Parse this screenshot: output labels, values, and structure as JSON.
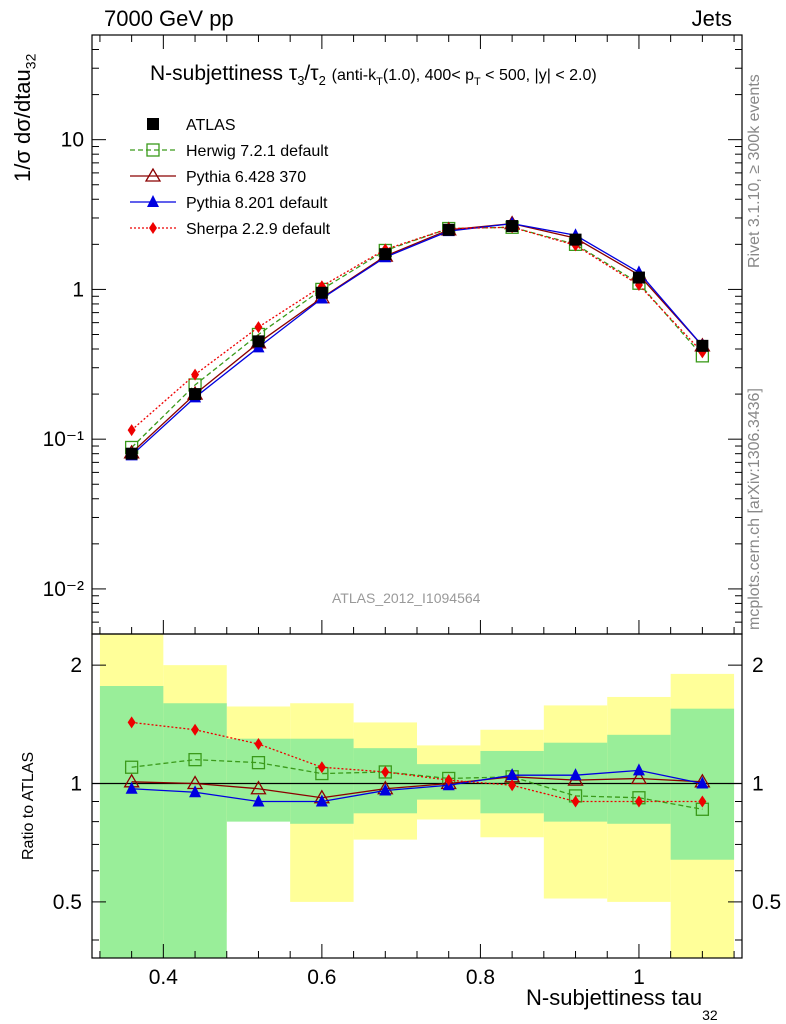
{
  "header": {
    "left": "7000 GeV pp",
    "right": "Jets"
  },
  "side_labels": {
    "rivet": "Rivet 3.1.10, ≥ 300k events",
    "mcplots": "mcplots.cern.ch [arXiv:1306.3436]"
  },
  "watermark": "ATLAS_2012_I1094564",
  "title": {
    "main": "N-subjettiness τ",
    "tau3_sub": "3",
    "slash": "/τ",
    "tau2_sub": "2",
    "cut_a": "(anti-k",
    "cut_a_sub": "T",
    "cut_b": "(1.0), 400< p",
    "cut_b_sub": "T",
    "cut_c": " < 500, |y| < 2.0)"
  },
  "axes": {
    "ylabel_main": "1/σ dσ/dtau",
    "ylabel_main_sub": "32",
    "ylabel_ratio": "Ratio to ATLAS",
    "xlabel": "N-subjettiness tau",
    "xlabel_sub": "32"
  },
  "chart_data": [
    {
      "type": "line",
      "panel": "main",
      "x": [
        0.36,
        0.44,
        0.52,
        0.6,
        0.68,
        0.76,
        0.84,
        0.92,
        1.0,
        1.08
      ],
      "x_edges": [
        0.32,
        0.4,
        0.48,
        0.56,
        0.64,
        0.72,
        0.8,
        0.88,
        0.96,
        1.04,
        1.12
      ],
      "xlim": [
        0.31,
        1.13
      ],
      "ylim": [
        0.005,
        50
      ],
      "yscale": "log",
      "x_ticks": [
        "0.4",
        "0.6",
        "0.8",
        "1"
      ],
      "y_ticks": [
        "10⁻²",
        "10⁻¹",
        "1",
        "10"
      ],
      "legend_position": "top-left",
      "series": [
        {
          "name": "ATLAS",
          "color": "#000000",
          "marker": "square-filled",
          "line": "none",
          "values": [
            0.08,
            0.2,
            0.45,
            0.95,
            1.72,
            2.5,
            2.65,
            2.15,
            1.2,
            0.42
          ]
        },
        {
          "name": "Herwig 7.2.1 default",
          "color": "#3a9a1a",
          "marker": "square-open",
          "line": "dashed",
          "values": [
            0.088,
            0.23,
            0.5,
            1.0,
            1.82,
            2.55,
            2.6,
            2.0,
            1.1,
            0.36
          ]
        },
        {
          "name": "Pythia 6.428 370",
          "color": "#8b0000",
          "marker": "triangle-open",
          "line": "solid",
          "values": [
            0.081,
            0.2,
            0.44,
            0.88,
            1.67,
            2.5,
            2.75,
            2.2,
            1.25,
            0.42
          ]
        },
        {
          "name": "Pythia 8.201 default",
          "color": "#0000e0",
          "marker": "triangle-filled",
          "line": "solid",
          "values": [
            0.078,
            0.19,
            0.41,
            0.87,
            1.64,
            2.45,
            2.75,
            2.3,
            1.3,
            0.42
          ]
        },
        {
          "name": "Sherpa 2.2.9 default",
          "color": "#ee0000",
          "marker": "diamond-filled",
          "line": "dotted",
          "values": [
            0.115,
            0.27,
            0.56,
            1.05,
            1.85,
            2.55,
            2.6,
            1.97,
            1.07,
            0.38
          ]
        }
      ]
    },
    {
      "type": "line",
      "panel": "ratio",
      "xlim": [
        0.31,
        1.13
      ],
      "ylim": [
        0.36,
        2.4
      ],
      "yscale": "log",
      "y_ticks": [
        "0.5",
        "1",
        "2"
      ],
      "x_edges": [
        0.32,
        0.4,
        0.48,
        0.56,
        0.64,
        0.72,
        0.8,
        0.88,
        0.96,
        1.04,
        1.12
      ],
      "band_yellow": {
        "lo": [
          0.3,
          0.47,
          0.82,
          0.5,
          0.72,
          0.81,
          0.73,
          0.51,
          0.5,
          0.3
        ],
        "hi": [
          2.4,
          2.0,
          1.57,
          1.6,
          1.43,
          1.25,
          1.37,
          1.58,
          1.66,
          1.9
        ]
      },
      "band_green": {
        "lo": [
          0.3,
          0.3,
          0.8,
          0.79,
          0.84,
          0.91,
          0.84,
          0.8,
          0.79,
          0.64
        ],
        "hi": [
          1.77,
          1.6,
          1.3,
          1.3,
          1.23,
          1.12,
          1.21,
          1.27,
          1.33,
          1.55
        ]
      },
      "series": [
        {
          "name": "Herwig 7.2.1 default",
          "color": "#3a9a1a",
          "values": [
            1.1,
            1.15,
            1.13,
            1.06,
            1.07,
            1.03,
            1.04,
            0.93,
            0.92,
            0.86
          ]
        },
        {
          "name": "Pythia 6.428 370",
          "color": "#8b0000",
          "values": [
            1.01,
            1.0,
            0.97,
            0.92,
            0.97,
            1.0,
            1.04,
            1.02,
            1.03,
            1.01
          ]
        },
        {
          "name": "Pythia 8.201 default",
          "color": "#0000e0",
          "values": [
            0.97,
            0.95,
            0.9,
            0.9,
            0.96,
            0.99,
            1.05,
            1.05,
            1.08,
            1.0
          ]
        },
        {
          "name": "Sherpa 2.2.9 default",
          "color": "#ee0000",
          "values": [
            1.43,
            1.37,
            1.26,
            1.1,
            1.07,
            1.02,
            0.99,
            0.9,
            0.9,
            0.9
          ]
        }
      ]
    }
  ]
}
